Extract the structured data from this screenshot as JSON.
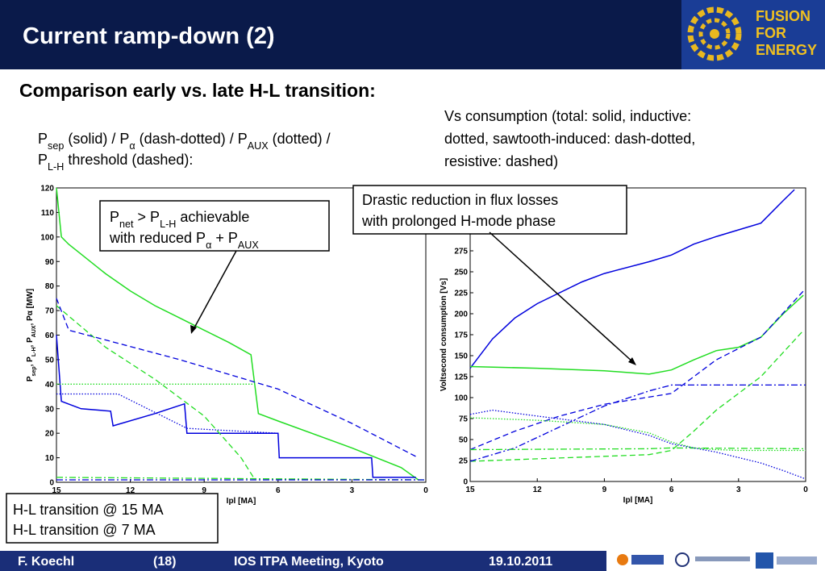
{
  "header": {
    "title": "Current ramp-down (2)",
    "logo": [
      "FUSION",
      "FOR",
      "ENERGY"
    ]
  },
  "subtitle": "Comparison early vs. late H-L transition:",
  "left_caption": [
    [
      {
        "text": "P"
      },
      {
        "text": "sep",
        "sub": true
      },
      {
        "text": " (solid) / P"
      },
      {
        "text": "α",
        "sub": true
      },
      {
        "text": " (dash-dotted) / P"
      },
      {
        "text": "AUX",
        "sub": true
      },
      {
        "text": " (dotted) /"
      }
    ],
    [
      {
        "text": "P"
      },
      {
        "text": "L-H",
        "sub": true
      },
      {
        "text": " threshold (dashed):"
      }
    ]
  ],
  "right_caption": [
    "Vs consumption (total: solid, inductive:",
    "dotted, sawtooth-induced: dash-dotted,",
    "resistive: dashed)"
  ],
  "annotations": [
    {
      "lines": [
        [
          {
            "text": "P"
          },
          {
            "text": "net",
            "sub": true
          },
          {
            "text": " > P"
          },
          {
            "text": "L-H",
            "sub": true
          },
          {
            "text": " achievable"
          }
        ],
        [
          {
            "text": "with reduced P"
          },
          {
            "text": "α",
            "sub": true
          },
          {
            "text": " + P"
          },
          {
            "text": "AUX",
            "sub": true
          }
        ]
      ]
    },
    {
      "lines": [
        [
          {
            "text": "Drastic reduction in flux losses"
          }
        ],
        [
          {
            "text": "with prolonged H-mode phase"
          }
        ]
      ]
    }
  ],
  "legend_box": [
    {
      "text": "H-L transition @ 15 MA",
      "color": "#0000dd"
    },
    {
      "text": "H-L transition @ 7 MA",
      "color": "#22cc22"
    }
  ],
  "footer": [
    "F. Koechl",
    "(18)",
    "IOS ITPA Meeting, Kyoto",
    "19.10.2011"
  ],
  "chart_data": [
    {
      "type": "line",
      "y_label": [
        {
          "text": "P"
        },
        {
          "text": "sep",
          "sub": true
        },
        {
          "text": ", P"
        },
        {
          "text": "L-H",
          "sub": true
        },
        {
          "text": ", P"
        },
        {
          "text": "AUX",
          "sub": true
        },
        {
          "text": ", Pα [MW]"
        }
      ],
      "x_label": "Ipl [MA]",
      "xlim": [
        15,
        0
      ],
      "xticks": [
        15,
        12,
        9,
        6,
        3,
        0
      ],
      "ylim": [
        0,
        120
      ],
      "yticks": [
        0,
        10,
        20,
        30,
        40,
        50,
        60,
        70,
        80,
        90,
        100,
        110,
        120
      ],
      "series": [
        {
          "color": "#22dd22",
          "dash": "solid",
          "x": [
            15,
            14.8,
            14.5,
            14,
            13,
            12,
            11,
            10,
            9,
            8,
            7.1,
            6.95,
            6.8,
            6,
            3,
            1,
            0.3
          ],
          "values": [
            120,
            100,
            97,
            93,
            85,
            78,
            72,
            67,
            62,
            57,
            52,
            40,
            28,
            25,
            14,
            6,
            1
          ]
        },
        {
          "color": "#0000dd",
          "dash": "solid",
          "x": [
            15,
            14.8,
            14,
            12.8,
            12.7,
            11,
            9.8,
            9.7,
            6,
            5.95,
            2.2,
            2.15,
            0.4
          ],
          "values": [
            60,
            33,
            30,
            29,
            23,
            28,
            32,
            20,
            20,
            10,
            10,
            2,
            2
          ]
        },
        {
          "color": "#22dd22",
          "dash": "dashed",
          "x": [
            15,
            13,
            11,
            9,
            7.5,
            7
          ],
          "values": [
            72,
            55,
            42,
            27,
            10,
            2
          ]
        },
        {
          "color": "#0000dd",
          "dash": "dashed",
          "x": [
            15,
            14.5,
            10,
            6,
            3,
            0.3
          ],
          "values": [
            75,
            62,
            50,
            38,
            24,
            10
          ]
        },
        {
          "color": "#22dd22",
          "dash": "dotted",
          "x": [
            15,
            7
          ],
          "values": [
            40,
            40
          ]
        },
        {
          "color": "#0000dd",
          "dash": "dotted",
          "x": [
            15,
            12.5,
            9.7,
            6
          ],
          "values": [
            36,
            36,
            22,
            20
          ]
        },
        {
          "color": "#22dd22",
          "dash": "dashdot",
          "x": [
            15,
            0
          ],
          "values": [
            2,
            1
          ]
        },
        {
          "color": "#0000dd",
          "dash": "dashdot",
          "x": [
            15,
            0
          ],
          "values": [
            1,
            1
          ]
        }
      ]
    },
    {
      "type": "line",
      "y_label": [
        {
          "text": "Voltsecond consumption [Vs]"
        }
      ],
      "x_label": "Ipl [MA]",
      "xlim": [
        15,
        0
      ],
      "xticks": [
        15,
        12,
        9,
        6,
        3,
        0
      ],
      "ylim": [
        0,
        350
      ],
      "yticks": [
        0,
        25,
        50,
        75,
        100,
        125,
        150,
        175,
        200,
        225,
        250,
        275
      ],
      "series": [
        {
          "color": "#0000dd",
          "dash": "solid",
          "x": [
            15,
            14,
            13,
            12,
            10,
            9,
            7,
            6,
            5,
            4,
            3,
            2,
            1,
            0.5
          ],
          "values": [
            135,
            170,
            195,
            212,
            238,
            248,
            262,
            270,
            283,
            292,
            300,
            308,
            335,
            348
          ]
        },
        {
          "color": "#22dd22",
          "dash": "solid",
          "x": [
            15,
            12,
            9,
            7,
            6,
            5,
            4,
            3,
            2,
            1,
            0.1
          ],
          "values": [
            137,
            135,
            132,
            128,
            133,
            145,
            156,
            160,
            172,
            200,
            222
          ]
        },
        {
          "color": "#0000dd",
          "dash": "dashed",
          "x": [
            15,
            13,
            11,
            9,
            6,
            4,
            2,
            0.1
          ],
          "values": [
            38,
            60,
            78,
            92,
            105,
            145,
            172,
            227
          ]
        },
        {
          "color": "#22dd22",
          "dash": "dashed",
          "x": [
            15,
            12,
            9,
            7,
            6,
            5,
            4,
            3,
            2,
            0.1
          ],
          "values": [
            24,
            27,
            30,
            32,
            37,
            60,
            85,
            105,
            125,
            180
          ]
        },
        {
          "color": "#0000dd",
          "dash": "dashdot",
          "x": [
            15,
            13,
            11,
            9,
            7,
            6,
            0
          ],
          "values": [
            24,
            40,
            65,
            90,
            108,
            115,
            115
          ]
        },
        {
          "color": "#22dd22",
          "dash": "dashdot",
          "x": [
            15,
            7,
            6,
            0
          ],
          "values": [
            38,
            39,
            40,
            39
          ]
        },
        {
          "color": "#0000dd",
          "dash": "dotted",
          "x": [
            15,
            14,
            12,
            9,
            7,
            6,
            4,
            2,
            1,
            0
          ],
          "values": [
            80,
            85,
            78,
            68,
            55,
            45,
            35,
            22,
            13,
            3
          ]
        },
        {
          "color": "#22dd22",
          "dash": "dotted",
          "x": [
            15,
            12,
            9,
            7,
            6,
            5,
            4,
            3,
            0
          ],
          "values": [
            76,
            73,
            68,
            58,
            47,
            40,
            38,
            37,
            37
          ]
        }
      ]
    }
  ]
}
